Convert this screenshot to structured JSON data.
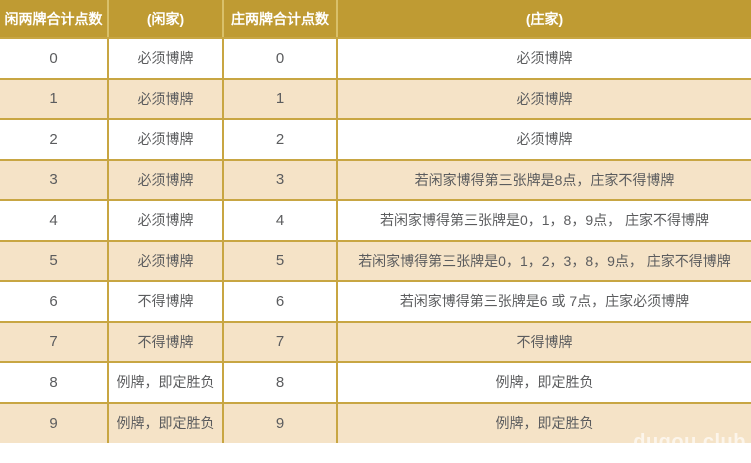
{
  "colors": {
    "header_bg": "#bf9b33",
    "border_gold": "#c8a643",
    "header_separator": "#d9c06a",
    "row_cream": "#f5e3c7",
    "row_white": "#ffffff",
    "cell_text": "#5b5c5e",
    "header_text": "#ffffff"
  },
  "watermark": "dugou.club",
  "table": {
    "headers": {
      "player_total": "闲两牌合计点数",
      "player_rule": "(闲家)",
      "banker_total": "庄两牌合计点数",
      "banker_rule": "(庄家)"
    },
    "rows": [
      {
        "player_total": "0",
        "player_rule": "必须博牌",
        "banker_total": "0",
        "banker_rule": "必须博牌"
      },
      {
        "player_total": "1",
        "player_rule": "必须博牌",
        "banker_total": "1",
        "banker_rule": "必须博牌"
      },
      {
        "player_total": "2",
        "player_rule": "必须博牌",
        "banker_total": "2",
        "banker_rule": "必须博牌"
      },
      {
        "player_total": "3",
        "player_rule": "必须博牌",
        "banker_total": "3",
        "banker_rule": "若闲家博得第三张牌是8点，庄家不得博牌"
      },
      {
        "player_total": "4",
        "player_rule": "必须博牌",
        "banker_total": "4",
        "banker_rule": "若闲家博得第三张牌是0，1，8，9点， 庄家不得博牌"
      },
      {
        "player_total": "5",
        "player_rule": "必须博牌",
        "banker_total": "5",
        "banker_rule": "若闲家博得第三张牌是0，1，2，3，8，9点， 庄家不得博牌"
      },
      {
        "player_total": "6",
        "player_rule": "不得博牌",
        "banker_total": "6",
        "banker_rule": "若闲家博得第三张牌是6 或 7点，庄家必须博牌"
      },
      {
        "player_total": "7",
        "player_rule": "不得博牌",
        "banker_total": "7",
        "banker_rule": "不得博牌"
      },
      {
        "player_total": "8",
        "player_rule": "例牌，即定胜负",
        "banker_total": "8",
        "banker_rule": "例牌，即定胜负"
      },
      {
        "player_total": "9",
        "player_rule": "例牌，即定胜负",
        "banker_total": "9",
        "banker_rule": "例牌，即定胜负"
      }
    ]
  }
}
